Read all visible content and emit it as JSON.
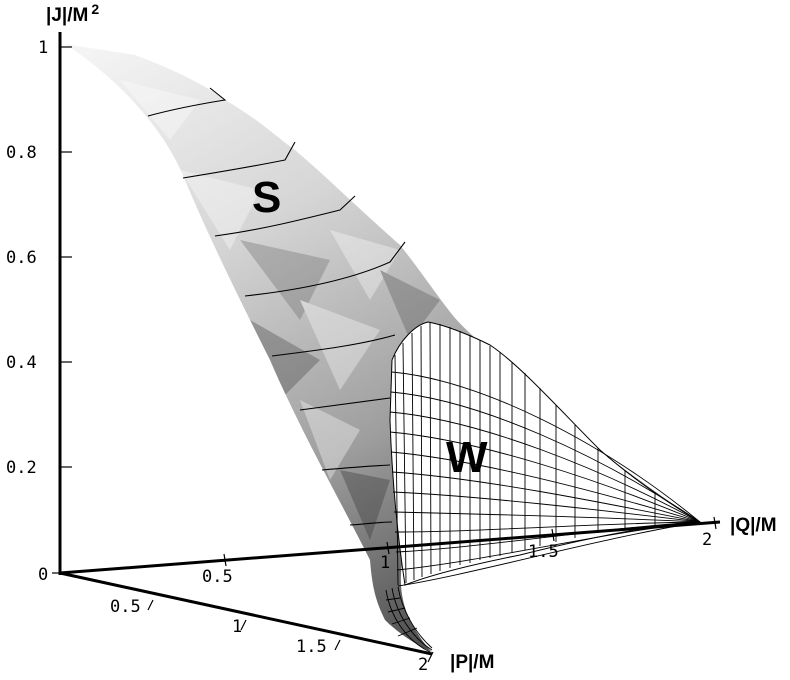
{
  "axes": {
    "j_label": "|J|/M",
    "j_label_sup": "2",
    "q_label": "|Q|/M",
    "p_label": "|P|/M",
    "origin_label": "0",
    "j_ticks": [
      "1",
      "0.8",
      "0.6",
      "0.4",
      "0.2"
    ],
    "q_ticks": [
      "0.5",
      "1",
      "1.5",
      "2"
    ],
    "p_ticks": [
      "0.5",
      "1",
      "1.5",
      "2"
    ]
  },
  "regions": {
    "s_label": "S",
    "w_label": "W"
  },
  "colors": {
    "surface_light": "#f2f2f2",
    "surface_mid": "#c8c8c8",
    "surface_dark": "#5a5a5a",
    "wire": "#000000",
    "background": "#ffffff"
  }
}
